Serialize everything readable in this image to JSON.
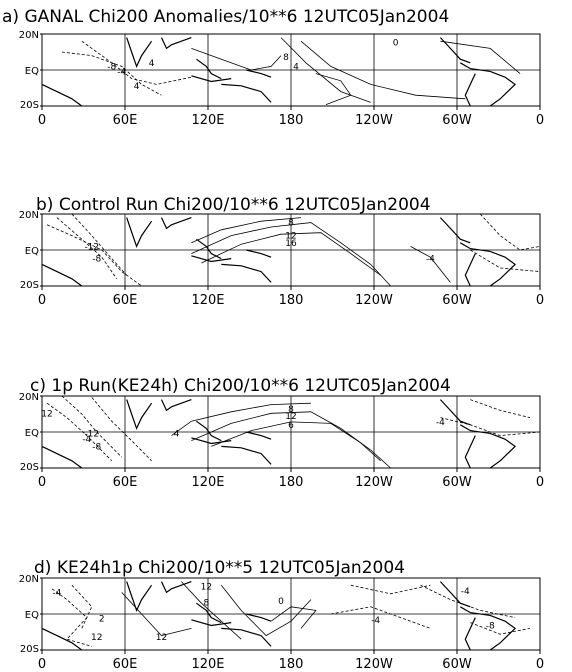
{
  "figure": {
    "panels": [
      {
        "title": "a) GANAL Chi200 Anomalies/10**6 12UTC05Jan2004",
        "lat_labels": [
          "20N",
          "EQ",
          "20S"
        ],
        "lon_labels": [
          "0",
          "60E",
          "120E",
          "180",
          "120W",
          "60W",
          "0"
        ],
        "contour_labels": [
          "-8",
          "-4",
          "4",
          "8",
          "4",
          "4",
          "0"
        ]
      },
      {
        "title": "b) Control Run Chi200/10**6 12UTC05Jan2004",
        "lat_labels": [
          "20N",
          "EQ",
          "20S"
        ],
        "lon_labels": [
          "0",
          "60E",
          "120E",
          "180",
          "120W",
          "60W",
          "0"
        ],
        "contour_labels": [
          "-12",
          "-8",
          "8",
          "12",
          "16",
          "-4"
        ]
      },
      {
        "title": "c) 1p Run(KE24h) Chi200/10**6 12UTC05Jan2004",
        "lat_labels": [
          "20N",
          "EQ",
          "20S"
        ],
        "lon_labels": [
          "0",
          "60E",
          "120E",
          "180",
          "120W",
          "60W",
          "0"
        ],
        "contour_labels": [
          "12",
          "-12",
          "-8",
          "-4",
          "4",
          "8",
          "12",
          "6",
          "-4"
        ]
      },
      {
        "title": "d) KE24h1p Chi200/10**5 12UTC05Jan2004",
        "lat_labels": [
          "20N",
          "EQ",
          "20S"
        ],
        "lon_labels": [
          "0",
          "60E",
          "120E",
          "180",
          "120W",
          "60W",
          "0"
        ],
        "contour_labels": [
          "-4",
          "12",
          "12",
          "12",
          "0",
          "8",
          "-4",
          "-4",
          "-8",
          "2"
        ]
      }
    ],
    "colors": {
      "ink": "#000000",
      "background": "#ffffff"
    }
  }
}
